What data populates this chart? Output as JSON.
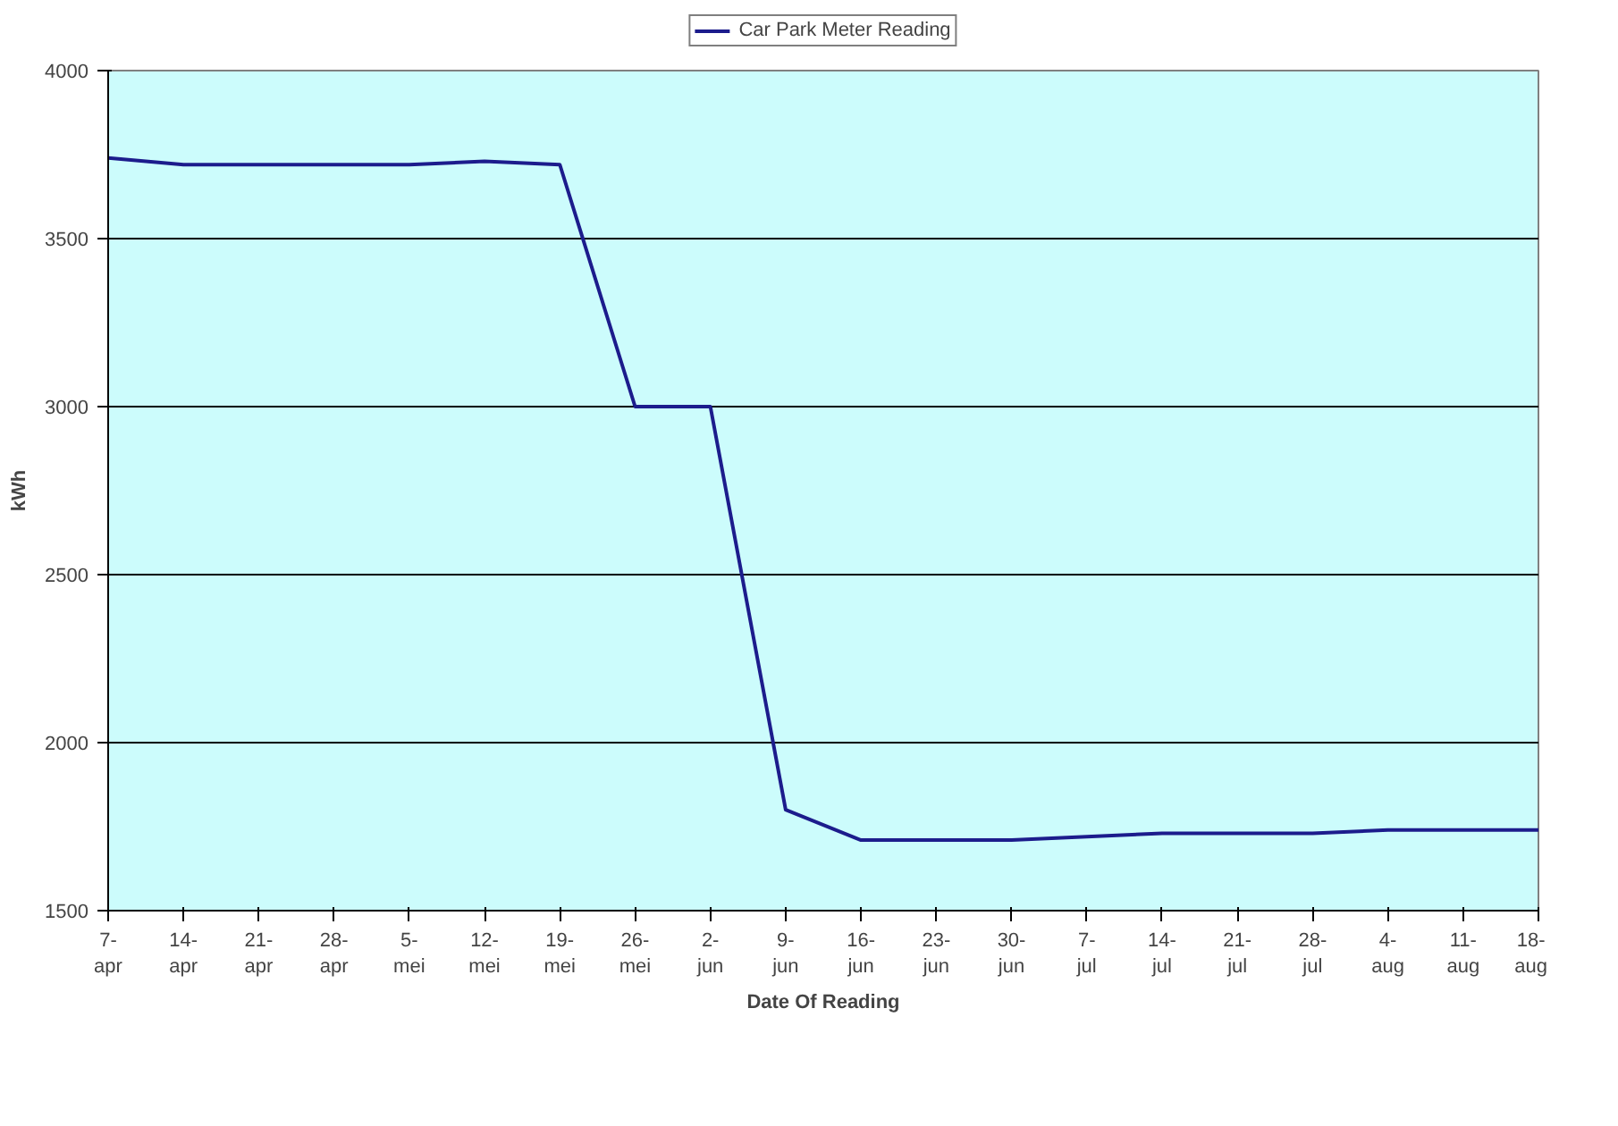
{
  "chart_data": {
    "type": "line",
    "xlabel": "Date Of Reading",
    "ylabel": "kWh",
    "categories": [
      "7-\napr",
      "14-\napr",
      "21-\napr",
      "28-\napr",
      "5-\nmei",
      "12-\nmei",
      "19-\nmei",
      "26-\nmei",
      "2-\njun",
      "9-\njun",
      "16-\njun",
      "23-\njun",
      "30-\njun",
      "7-\njul",
      "14-\njul",
      "21-\njul",
      "28-\njul",
      "4-\naug",
      "11-\naug",
      "18-\naug"
    ],
    "series": [
      {
        "name": "Car Park Meter Reading",
        "color": "#1c1c8c",
        "values": [
          3740,
          3720,
          3720,
          3720,
          3720,
          3730,
          3720,
          3000,
          3000,
          1800,
          1710,
          1710,
          1710,
          1720,
          1730,
          1730,
          1730,
          1740,
          1740,
          1740
        ]
      }
    ],
    "ylim": [
      1500,
      4000
    ],
    "yticks": [
      1500,
      2000,
      2500,
      3000,
      3500,
      4000
    ],
    "grid": "y",
    "legend": "top",
    "marker": "none",
    "line_style": "solid"
  }
}
